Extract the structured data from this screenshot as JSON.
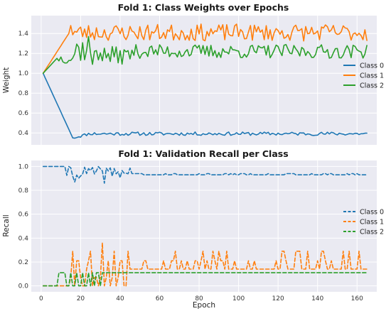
{
  "chart_data": [
    {
      "type": "line",
      "title": "Fold 1: Class Weights over Epochs",
      "xlabel": "",
      "ylabel": "Weight",
      "xlim": [
        -5,
        170
      ],
      "ylim": [
        0.28,
        1.58
      ],
      "xticks": [
        0,
        20,
        40,
        60,
        80,
        100,
        120,
        140,
        160
      ],
      "yticks": [
        0.4,
        0.6,
        0.8,
        1.0,
        1.2,
        1.4
      ],
      "ytick_labels": [
        "0.4",
        "0.6",
        "0.8",
        "1.0",
        "1.2",
        "1.4"
      ],
      "show_xtick_labels": false,
      "grid": true,
      "legend_position": "right",
      "dashed": false,
      "series": [
        {
          "name": "Class 0",
          "color": "#1f77b4",
          "generator": "weights_c0"
        },
        {
          "name": "Class 1",
          "color": "#ff7f0e",
          "generator": "weights_c1"
        },
        {
          "name": "Class 2",
          "color": "#2ca02c",
          "generator": "weights_c2"
        }
      ],
      "series_summary": {
        "epochs": [
          1,
          165
        ],
        "start_value_all": 1.0,
        "Class 0": {
          "min": 0.35,
          "min_at_epoch": 16,
          "plateau": 0.39
        },
        "Class 1": {
          "plateau": 1.4,
          "range": [
            1.31,
            1.5
          ]
        },
        "Class 2": {
          "plateau": 1.22,
          "range": [
            1.07,
            1.38
          ]
        }
      }
    },
    {
      "type": "line",
      "title": "Fold 1: Validation Recall per Class",
      "xlabel": "Epoch",
      "ylabel": "Recall",
      "xlim": [
        -5,
        170
      ],
      "ylim": [
        -0.05,
        1.05
      ],
      "xticks": [
        0,
        20,
        40,
        60,
        80,
        100,
        120,
        140,
        160
      ],
      "yticks": [
        0.0,
        0.2,
        0.4,
        0.6,
        0.8,
        1.0
      ],
      "ytick_labels": [
        "0.0",
        "0.2",
        "0.4",
        "0.6",
        "0.8",
        "1.0"
      ],
      "show_xtick_labels": true,
      "grid": true,
      "legend_position": "right",
      "dashed": true,
      "series": [
        {
          "name": "Class 0",
          "color": "#1f77b4",
          "generator": "recall_c0"
        },
        {
          "name": "Class 1",
          "color": "#ff7f0e",
          "generator": "recall_c1"
        },
        {
          "name": "Class 2",
          "color": "#2ca02c",
          "generator": "recall_c2"
        }
      ],
      "series_summary": {
        "epochs": [
          1,
          165
        ],
        "Class 0": {
          "start": 1.0,
          "plateau": 0.93,
          "min": 0.86
        },
        "Class 1": {
          "start": 0.0,
          "baseline": 0.14,
          "peaks": [
            0.21,
            0.29,
            0.36
          ]
        },
        "Class 2": {
          "start": 0.0,
          "plateau": 0.11,
          "dips_to": 0.0,
          "dip_epochs": [
            13,
            30
          ]
        }
      }
    }
  ]
}
